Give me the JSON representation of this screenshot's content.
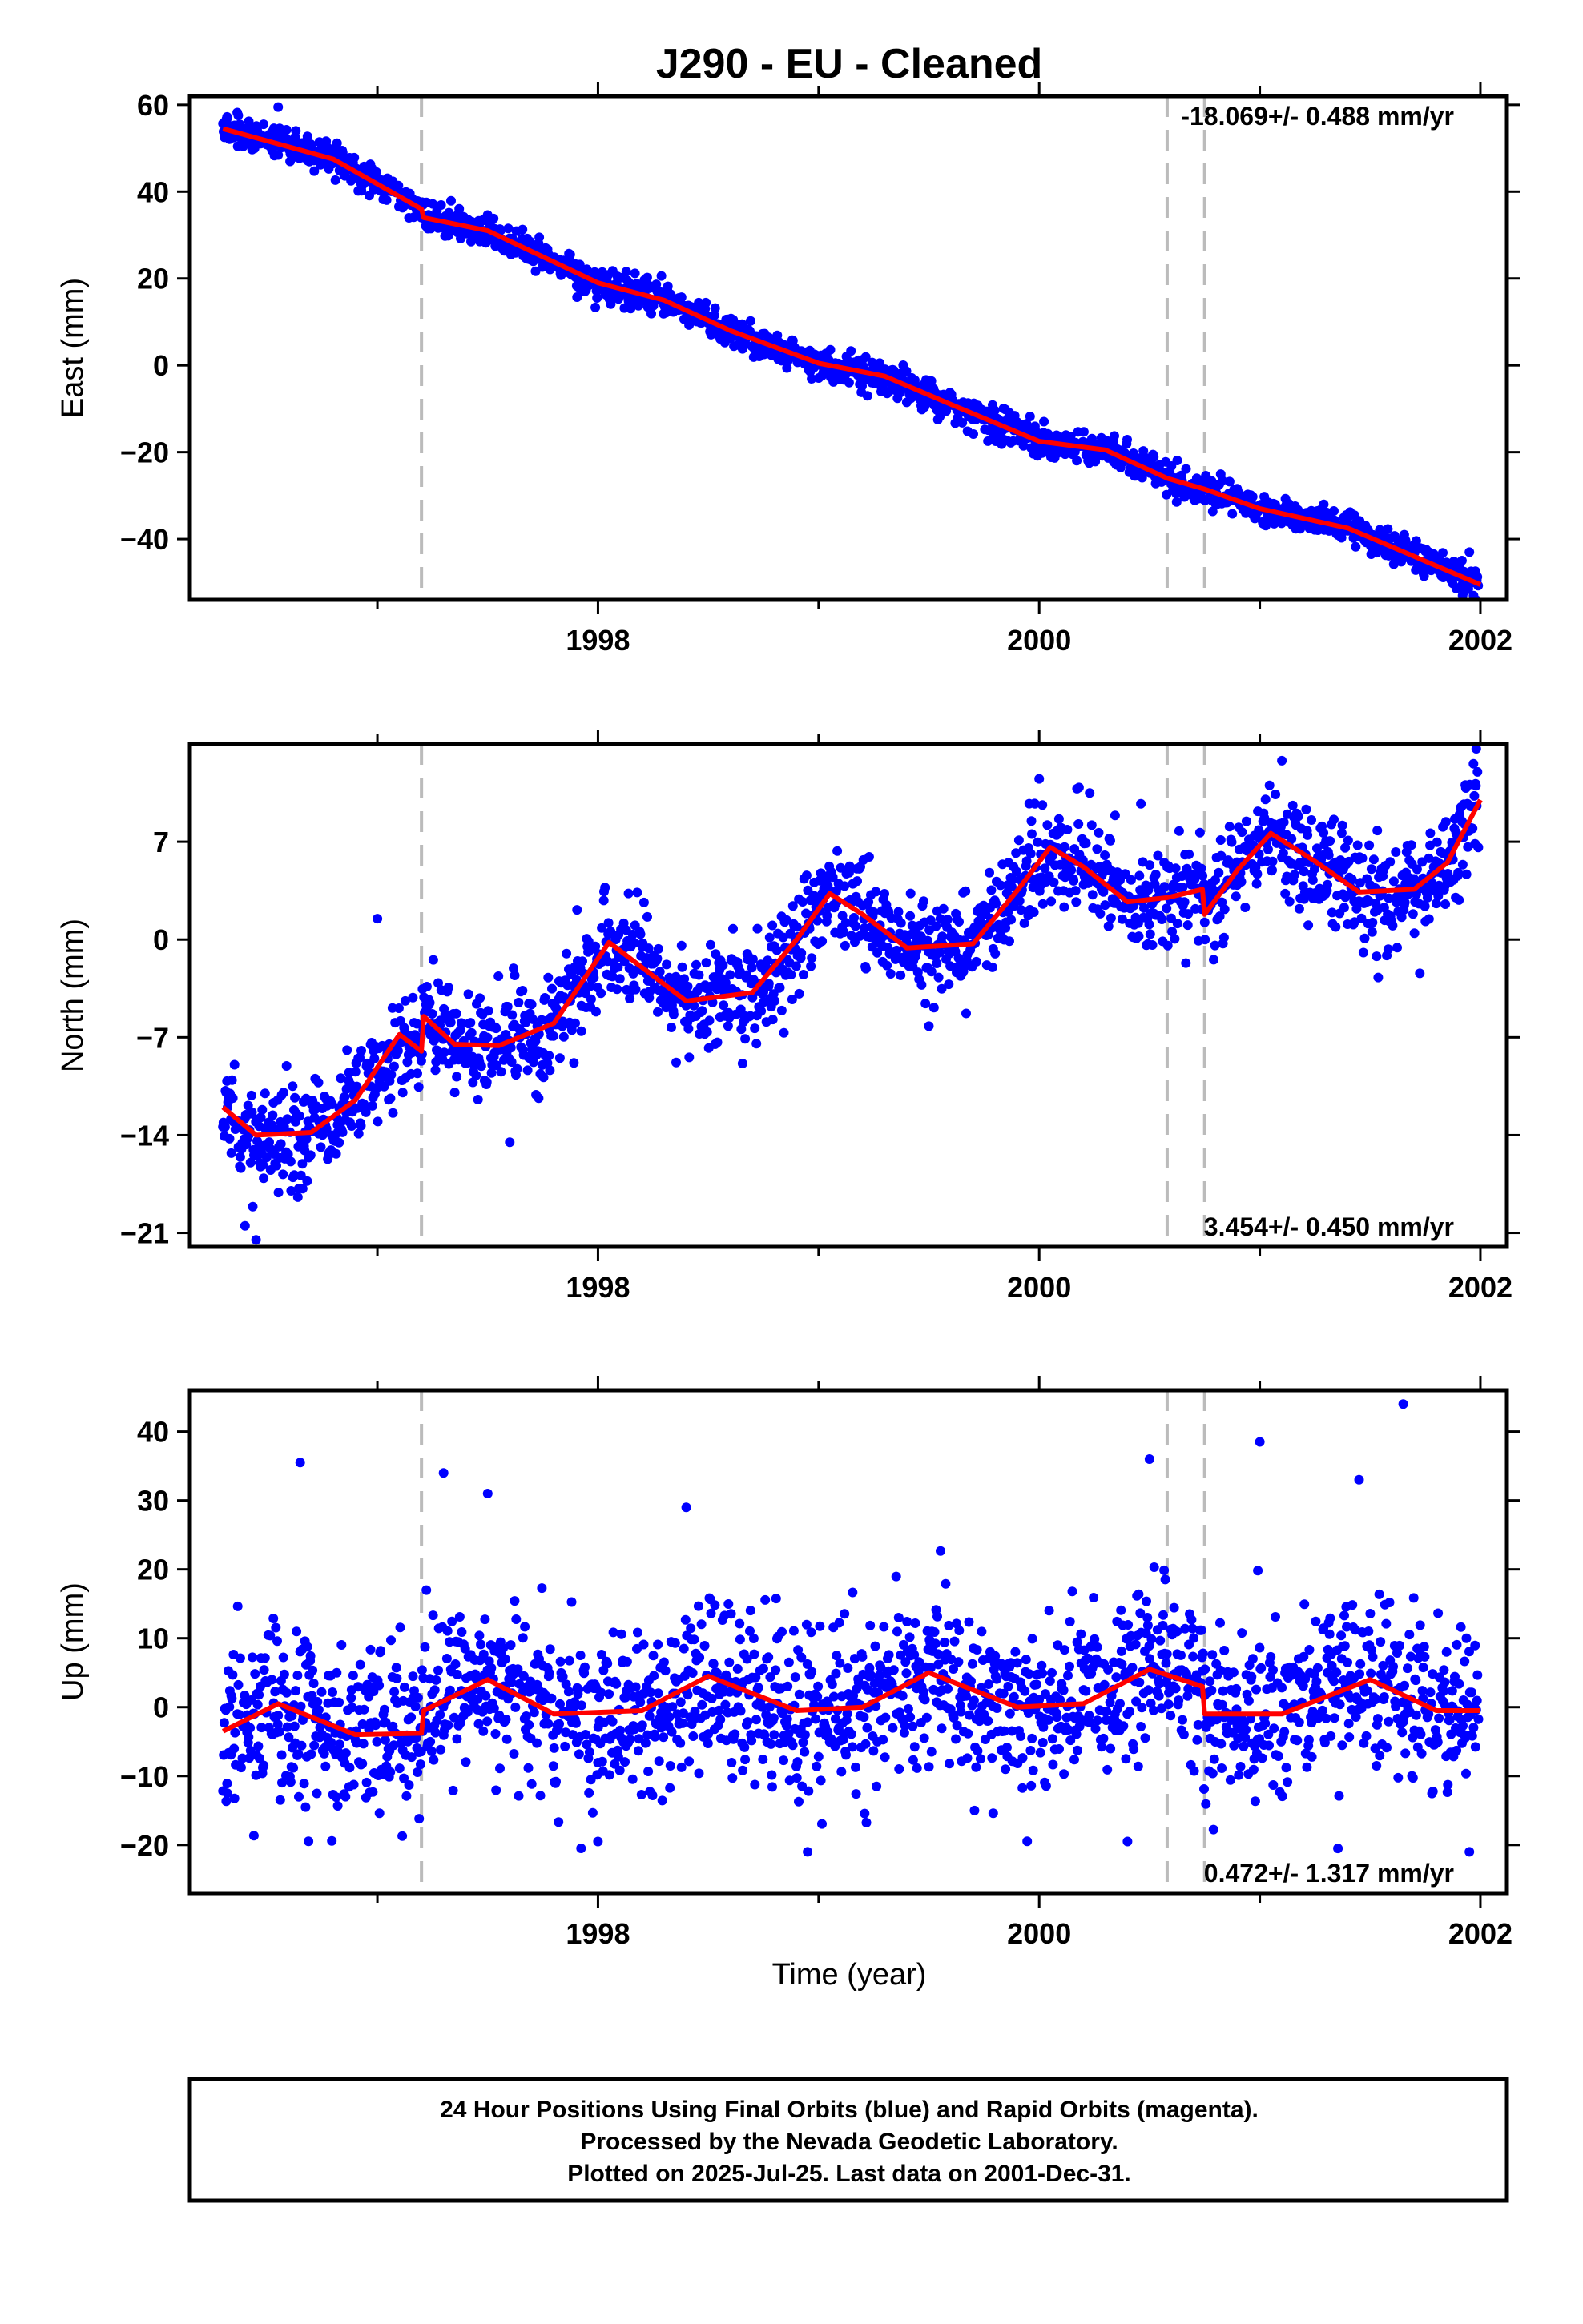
{
  "chart_data": {
    "type": "scatter",
    "title": "J290  - EU - Cleaned",
    "xlabel": "Time (year)",
    "x_ticks": [
      1998,
      2000,
      2002
    ],
    "xlim": [
      1996.15,
      2002.12
    ],
    "vertical_markers": [
      1997.2,
      2000.58,
      2000.75
    ],
    "colors": {
      "points": "#0000ff",
      "model": "#ff0000",
      "markers": "#bbbbbb"
    },
    "panels": [
      {
        "name": "east",
        "ylabel": "East (mm)",
        "ylim": [
          -54,
          62
        ],
        "yticks": [
          60,
          40,
          20,
          0,
          -20,
          -40
        ],
        "rate_label": "-18.069+/- 0.488 mm/yr",
        "rate_position": "top-right",
        "model": [
          [
            1996.3,
            54.5
          ],
          [
            1996.8,
            47.5
          ],
          [
            1997.2,
            36.0
          ],
          [
            1997.21,
            34.0
          ],
          [
            1997.5,
            31.0
          ],
          [
            1998.0,
            19.0
          ],
          [
            1998.3,
            15.0
          ],
          [
            1998.6,
            8.0
          ],
          [
            1999.0,
            0.5
          ],
          [
            1999.3,
            -2.5
          ],
          [
            1999.6,
            -9.0
          ],
          [
            2000.0,
            -17.5
          ],
          [
            2000.3,
            -19.5
          ],
          [
            2000.58,
            -26.0
          ],
          [
            2000.75,
            -28.5
          ],
          [
            2001.0,
            -33.0
          ],
          [
            2001.4,
            -37.5
          ],
          [
            2001.7,
            -44.0
          ],
          [
            2002.0,
            -50.5
          ]
        ],
        "scatter": {
          "count": 1950,
          "x_range": [
            1996.3,
            2001.99
          ],
          "noise_sd": 1.8,
          "outliers": [
            [
              1996.55,
              59.5
            ],
            [
              1996.32,
              57.0
            ],
            [
              1998.9,
              3.5
            ],
            [
              2001.95,
              -43.0
            ]
          ]
        }
      },
      {
        "name": "north",
        "ylabel": "North (mm)",
        "ylim": [
          -22,
          14
        ],
        "yticks": [
          7,
          0,
          -7,
          -14,
          -21
        ],
        "rate_label": "3.454+/- 0.450 mm/yr",
        "rate_position": "bottom-right",
        "model": [
          [
            1996.3,
            -12.0
          ],
          [
            1996.45,
            -14.0
          ],
          [
            1996.7,
            -13.8
          ],
          [
            1996.9,
            -11.5
          ],
          [
            1997.1,
            -6.8
          ],
          [
            1997.2,
            -8.0
          ],
          [
            1997.21,
            -5.5
          ],
          [
            1997.35,
            -7.5
          ],
          [
            1997.55,
            -7.6
          ],
          [
            1997.8,
            -6.0
          ],
          [
            1998.05,
            -0.2
          ],
          [
            1998.2,
            -2.0
          ],
          [
            1998.4,
            -4.4
          ],
          [
            1998.7,
            -3.8
          ],
          [
            1998.9,
            0.0
          ],
          [
            1999.05,
            3.3
          ],
          [
            1999.2,
            1.8
          ],
          [
            1999.4,
            -0.6
          ],
          [
            1999.7,
            -0.3
          ],
          [
            1999.9,
            3.5
          ],
          [
            2000.05,
            6.6
          ],
          [
            2000.2,
            5.2
          ],
          [
            2000.4,
            2.7
          ],
          [
            2000.58,
            3.0
          ],
          [
            2000.74,
            3.6
          ],
          [
            2000.75,
            1.8
          ],
          [
            2000.9,
            5.0
          ],
          [
            2001.05,
            7.6
          ],
          [
            2001.25,
            5.6
          ],
          [
            2001.45,
            3.4
          ],
          [
            2001.7,
            3.6
          ],
          [
            2001.85,
            5.5
          ],
          [
            2002.0,
            10.0
          ]
        ],
        "scatter": {
          "count": 1950,
          "x_range": [
            1996.3,
            2001.99
          ],
          "noise_sd": 1.9,
          "outliers": [
            [
              1997.0,
              1.5
            ],
            [
              1997.6,
              -14.5
            ],
            [
              1996.4,
              -20.5
            ],
            [
              1996.45,
              -21.5
            ],
            [
              2001.1,
              12.8
            ],
            [
              2000.0,
              11.5
            ],
            [
              1999.5,
              -6.2
            ],
            [
              2001.98,
              11.0
            ]
          ]
        }
      },
      {
        "name": "up",
        "ylabel": "Up (mm)",
        "ylim": [
          -27,
          46
        ],
        "yticks": [
          40,
          30,
          20,
          10,
          0,
          -10,
          -20
        ],
        "rate_label": "0.472+/- 1.317 mm/yr",
        "rate_position": "bottom-right",
        "model": [
          [
            1996.3,
            -3.5
          ],
          [
            1996.55,
            0.5
          ],
          [
            1996.9,
            -4.0
          ],
          [
            1997.2,
            -3.8
          ],
          [
            1997.21,
            -0.5
          ],
          [
            1997.5,
            4.0
          ],
          [
            1997.8,
            -1.0
          ],
          [
            1998.2,
            -0.5
          ],
          [
            1998.5,
            4.5
          ],
          [
            1998.9,
            -0.5
          ],
          [
            1999.2,
            0.0
          ],
          [
            1999.5,
            5.0
          ],
          [
            1999.9,
            0.0
          ],
          [
            2000.2,
            0.5
          ],
          [
            2000.5,
            5.5
          ],
          [
            2000.74,
            3.0
          ],
          [
            2000.75,
            -1.0
          ],
          [
            2001.1,
            -1.0
          ],
          [
            2001.5,
            4.0
          ],
          [
            2001.8,
            -0.5
          ],
          [
            2002.0,
            -0.5
          ]
        ],
        "scatter": {
          "count": 1950,
          "x_range": [
            1996.3,
            2001.99
          ],
          "noise_sd": 6.0,
          "outliers": [
            [
              2001.65,
              44.0
            ],
            [
              2001.0,
              38.5
            ],
            [
              1996.65,
              35.5
            ],
            [
              2000.5,
              36.0
            ],
            [
              1997.3,
              34.0
            ],
            [
              1997.5,
              31.0
            ],
            [
              1998.4,
              29.0
            ],
            [
              2001.45,
              33.0
            ],
            [
              1998.95,
              -21.0
            ],
            [
              2001.95,
              -21.0
            ],
            [
              2000.4,
              -19.5
            ],
            [
              1998.0,
              -19.5
            ]
          ]
        }
      }
    ]
  },
  "footer": {
    "lines": [
      "24 Hour Positions Using Final Orbits (blue) and Rapid Orbits (magenta).",
      "Processed by the Nevada Geodetic Laboratory.",
      "Plotted on 2025-Jul-25. Last data on 2001-Dec-31."
    ]
  }
}
